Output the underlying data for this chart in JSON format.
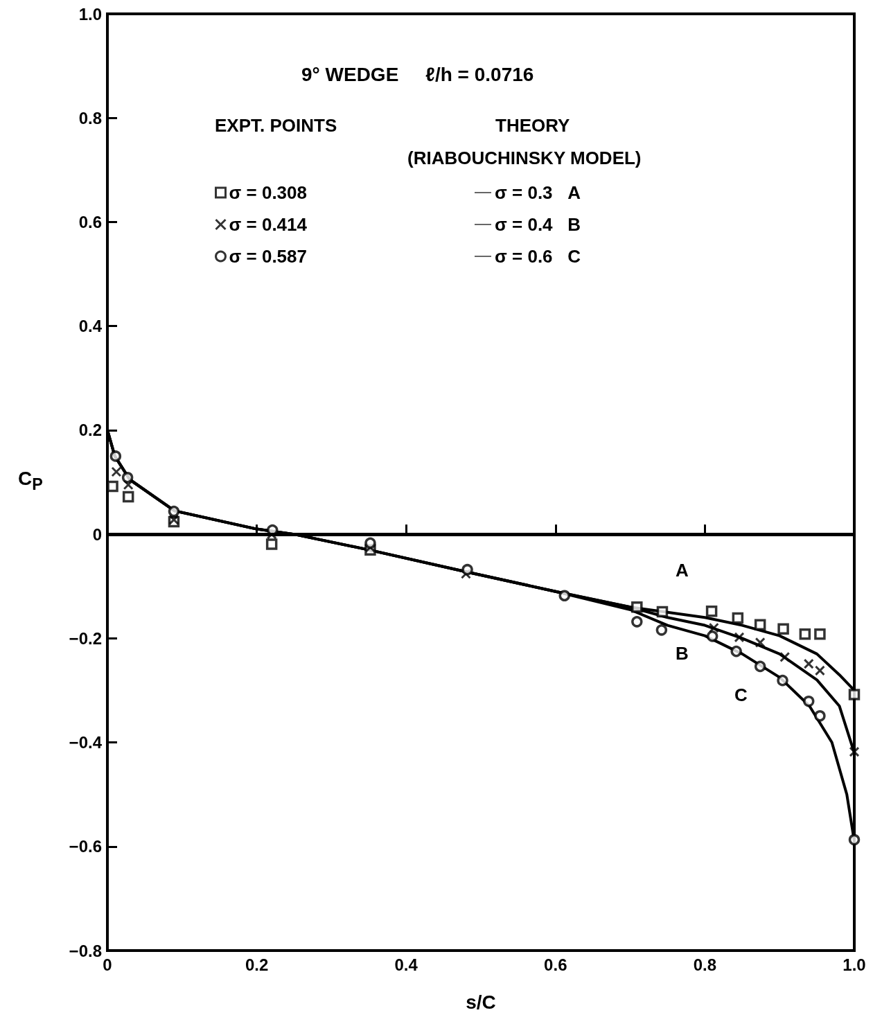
{
  "chart_data": {
    "type": "scatter",
    "title": "9° WEDGE     ℓ/h = 0.0716",
    "xlabel": "s/C",
    "ylabel": "C$_{P}$",
    "xlim": [
      0,
      1
    ],
    "ylim": [
      -0.8,
      1
    ],
    "xticks": [
      0,
      0.2,
      0.4,
      0.6,
      0.8,
      {
        "value": 1,
        "label": "1.0"
      }
    ],
    "yticks": [
      {
        "value": -0.8,
        "label": "−0.8"
      },
      {
        "value": -0.6,
        "label": "−0.6"
      },
      {
        "value": -0.4,
        "label": "−0.4"
      },
      {
        "value": -0.2,
        "label": "−0.2"
      },
      0,
      0.2,
      0.4,
      0.6,
      0.8,
      {
        "value": 1,
        "label": "1.0"
      }
    ],
    "grid": false,
    "legend": "top",
    "ref_lines": [
      {
        "axis": "y",
        "value": 0,
        "color": "#000000"
      }
    ],
    "annotations": [
      "EXPT. POINTS",
      "THEORY",
      "(RIABOUCHINSKY MODEL)",
      "A",
      "B",
      "C"
    ],
    "series": [
      {
        "name": "σ = 0.308",
        "marker": "square",
        "color": "#000000",
        "x": [
          0.007,
          0.028,
          0.089,
          0.22,
          0.352,
          0.709,
          0.743,
          0.809,
          0.844,
          0.874,
          0.905,
          0.934,
          0.954,
          1.0
        ],
        "values": [
          0.092,
          0.072,
          0.024,
          -0.019,
          -0.03,
          -0.14,
          -0.149,
          -0.148,
          -0.161,
          -0.174,
          -0.182,
          -0.192,
          -0.192,
          -0.308
        ]
      },
      {
        "name": "σ = 0.414",
        "marker": "cross",
        "color": "#000000",
        "x": [
          0.012,
          0.028,
          0.089,
          0.22,
          0.352,
          0.48,
          0.61,
          0.812,
          0.846,
          0.874,
          0.907,
          0.939,
          0.954,
          1.0
        ],
        "values": [
          0.12,
          0.095,
          0.028,
          0.0,
          -0.025,
          -0.076,
          null,
          -0.18,
          -0.198,
          -0.208,
          -0.236,
          -0.249,
          -0.262,
          -0.418
        ]
      },
      {
        "name": "σ = 0.587",
        "marker": "circle",
        "color": "#000000",
        "x": [
          0.011,
          0.027,
          0.089,
          0.221,
          0.352,
          0.482,
          0.612,
          0.709,
          0.742,
          0.81,
          0.842,
          0.874,
          0.904,
          0.939,
          0.954,
          1.0
        ],
        "values": [
          0.15,
          0.109,
          0.044,
          0.008,
          -0.017,
          -0.068,
          -0.118,
          -0.168,
          -0.184,
          -0.196,
          -0.225,
          -0.254,
          -0.281,
          -0.321,
          -0.349,
          -0.587
        ]
      },
      {
        "name": "σ = 0.3   A",
        "type": "line",
        "marker": "none",
        "line_style": "solid",
        "color": "#000000",
        "x": [
          0,
          0.01,
          0.03,
          0.09,
          0.2,
          0.25,
          0.35,
          0.48,
          0.6,
          0.7,
          0.8,
          0.85,
          0.9,
          0.95,
          0.98,
          1.0
        ],
        "values": [
          0.2,
          0.15,
          0.105,
          0.045,
          0.01,
          0,
          -0.03,
          -0.072,
          -0.11,
          -0.14,
          -0.16,
          -0.175,
          -0.195,
          -0.23,
          -0.27,
          -0.3
        ]
      },
      {
        "name": "σ = 0.4   B",
        "type": "line",
        "marker": "none",
        "line_style": "solid",
        "color": "#000000",
        "x": [
          0,
          0.01,
          0.03,
          0.09,
          0.2,
          0.25,
          0.35,
          0.48,
          0.6,
          0.7,
          0.75,
          0.8,
          0.85,
          0.9,
          0.95,
          0.98,
          1.0
        ],
        "values": [
          0.2,
          0.15,
          0.105,
          0.045,
          0.01,
          0,
          -0.03,
          -0.072,
          -0.11,
          -0.14,
          -0.16,
          -0.175,
          -0.2,
          -0.23,
          -0.28,
          -0.33,
          -0.42
        ]
      },
      {
        "name": "σ = 0.6   C",
        "type": "line",
        "marker": "none",
        "line_style": "solid",
        "color": "#000000",
        "x": [
          0,
          0.01,
          0.03,
          0.09,
          0.2,
          0.25,
          0.35,
          0.48,
          0.6,
          0.7,
          0.75,
          0.8,
          0.85,
          0.9,
          0.94,
          0.97,
          0.99,
          1.0
        ],
        "values": [
          0.2,
          0.15,
          0.105,
          0.045,
          0.01,
          0,
          -0.03,
          -0.072,
          -0.11,
          -0.145,
          -0.175,
          -0.195,
          -0.23,
          -0.275,
          -0.33,
          -0.4,
          -0.5,
          -0.59
        ]
      }
    ]
  }
}
